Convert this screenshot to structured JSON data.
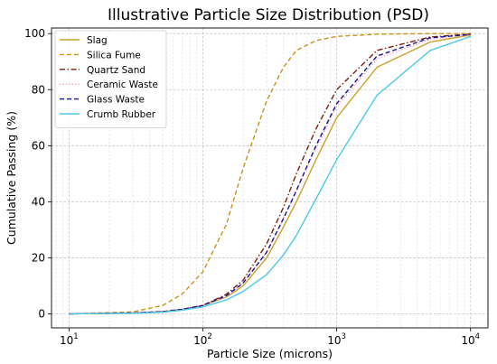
{
  "chart_data": {
    "type": "line",
    "title": "Illustrative Particle Size Distribution (PSD)",
    "xlabel": "Particle Size (microns)",
    "ylabel": "Cumulative Passing (%)",
    "x_scale": "log",
    "xlim": [
      7.4,
      13500
    ],
    "ylim": [
      -5,
      102
    ],
    "x_ticks": [
      {
        "value": 10,
        "base": "10",
        "exp": "1"
      },
      {
        "value": 100,
        "base": "10",
        "exp": "2"
      },
      {
        "value": 1000,
        "base": "10",
        "exp": "3"
      },
      {
        "value": 10000,
        "base": "10",
        "exp": "4"
      }
    ],
    "y_ticks": [
      0,
      20,
      40,
      60,
      80,
      100
    ],
    "grid": true,
    "legend_position": "top-left",
    "x": [
      10,
      30,
      50,
      70,
      100,
      150,
      200,
      300,
      400,
      500,
      700,
      1000,
      2000,
      5000,
      10000
    ],
    "series": [
      {
        "name": "Slag",
        "color": "#c9a227",
        "dash": "solid",
        "values": [
          0,
          0.3,
          0.8,
          1.6,
          3,
          6,
          10,
          20,
          31,
          40,
          55,
          70,
          88,
          97,
          99.5
        ]
      },
      {
        "name": "Silica Fume",
        "color": "#c8921e",
        "dash": "dashed",
        "values": [
          0,
          0.7,
          3,
          7,
          15,
          32,
          52,
          76,
          88,
          94,
          97.5,
          99,
          99.8,
          100,
          100
        ]
      },
      {
        "name": "Quartz Sand",
        "color": "#7b1d0f",
        "dash": "dashdot",
        "values": [
          0,
          0.3,
          0.8,
          1.6,
          3,
          7,
          12,
          25,
          38,
          50,
          66,
          80,
          94,
          98.8,
          99.8
        ]
      },
      {
        "name": "Ceramic Waste",
        "color": "#f0a0c8",
        "dash": "dotted",
        "values": [
          0,
          0.3,
          0.8,
          1.6,
          3,
          6,
          11,
          22,
          34,
          44,
          59,
          74,
          91,
          98,
          99.6
        ]
      },
      {
        "name": "Glass Waste",
        "color": "#14148c",
        "dash": "dashed",
        "values": [
          0,
          0.3,
          0.8,
          1.6,
          3,
          6.5,
          11,
          22,
          34,
          44,
          60,
          75,
          92,
          98.5,
          99.7
        ]
      },
      {
        "name": "Crumb Rubber",
        "color": "#4dc9e6",
        "dash": "solid",
        "values": [
          0,
          0.2,
          0.6,
          1.3,
          2.5,
          5,
          8,
          14,
          21,
          28,
          41,
          55,
          78,
          94,
          99
        ]
      }
    ]
  }
}
